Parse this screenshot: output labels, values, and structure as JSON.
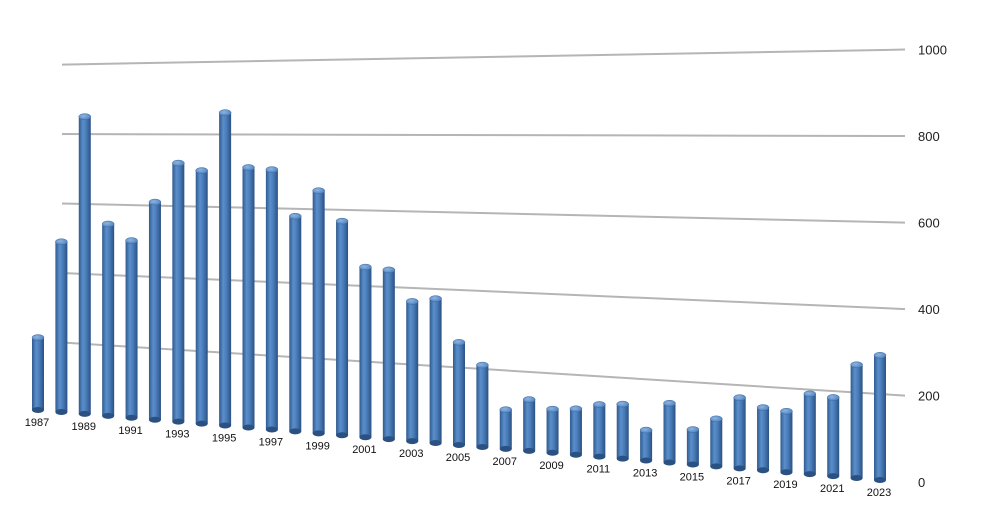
{
  "chart_data": {
    "type": "bar",
    "title": "",
    "xlabel": "",
    "ylabel": "",
    "ylim": [
      0,
      1000
    ],
    "yticks": [
      0,
      200,
      400,
      600,
      800,
      1000
    ],
    "grid": true,
    "legend": "none",
    "categories": [
      "1987",
      "1988",
      "1989",
      "1990",
      "1991",
      "1992",
      "1993",
      "1994",
      "1995",
      "1996",
      "1997",
      "1998",
      "1999",
      "2000",
      "2001",
      "2002",
      "2003",
      "2004",
      "2005",
      "2006",
      "2007",
      "2008",
      "2009",
      "2010",
      "2011",
      "2012",
      "2013",
      "2014",
      "2015",
      "2016",
      "2017",
      "2018",
      "2019",
      "2020",
      "2021",
      "2022",
      "2023"
    ],
    "shown_category_labels": [
      "1987",
      "1989",
      "1991",
      "1993",
      "1995",
      "1997",
      "1999",
      "2001",
      "2003",
      "2005",
      "2007",
      "2009",
      "2011",
      "2013",
      "2015",
      "2017",
      "2019",
      "2021",
      "2023"
    ],
    "values": [
      210,
      490,
      850,
      545,
      500,
      610,
      720,
      700,
      860,
      710,
      705,
      580,
      650,
      570,
      450,
      445,
      365,
      375,
      265,
      210,
      100,
      130,
      110,
      115,
      130,
      135,
      75,
      145,
      85,
      115,
      170,
      150,
      145,
      190,
      185,
      265,
      290
    ],
    "bar_color": "#4a7ebb"
  }
}
